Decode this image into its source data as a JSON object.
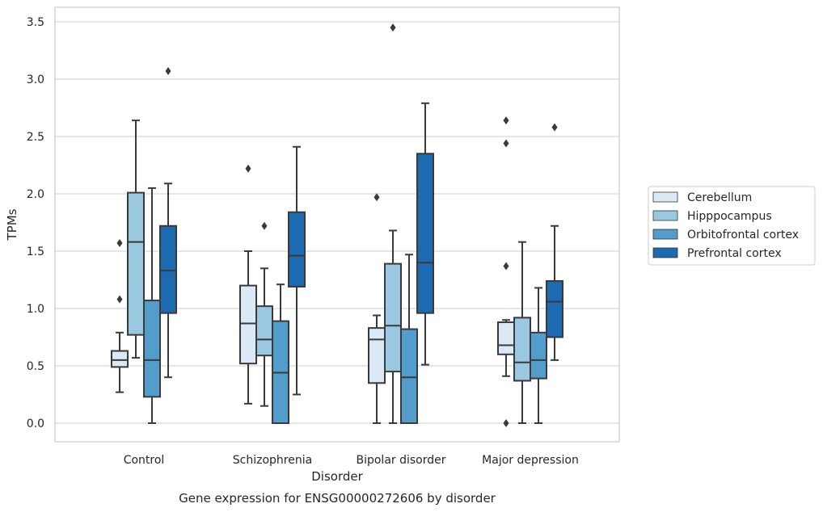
{
  "chart_data": {
    "type": "box",
    "caption": "Gene expression for ENSG00000272606 by disorder",
    "xlabel": "Disorder",
    "ylabel": "TPMs",
    "ylim": [
      -0.17,
      3.65
    ],
    "yticks": [
      "0.0",
      "0.5",
      "1.0",
      "1.5",
      "2.0",
      "2.5",
      "3.0",
      "3.5"
    ],
    "grid": "horizontal",
    "legend_position": "right",
    "categories": [
      "Control",
      "Schizophrenia",
      "Bipolar disorder",
      "Major depression"
    ],
    "series": [
      {
        "name": "Cerebellum",
        "color": "#dbe9f6",
        "boxes": [
          {
            "whisker_low": 0.27,
            "q1": 0.49,
            "median": 0.55,
            "q3": 0.63,
            "whisker_high": 0.79,
            "outliers": [
              1.08,
              1.57
            ]
          },
          {
            "whisker_low": 0.17,
            "q1": 0.52,
            "median": 0.87,
            "q3": 1.2,
            "whisker_high": 1.5,
            "outliers": [
              2.22
            ]
          },
          {
            "whisker_low": 0.0,
            "q1": 0.35,
            "median": 0.73,
            "q3": 0.83,
            "whisker_high": 0.94,
            "outliers": [
              1.97
            ]
          },
          {
            "whisker_low": 0.41,
            "q1": 0.6,
            "median": 0.68,
            "q3": 0.88,
            "whisker_high": 0.9,
            "outliers": [
              0.0,
              1.37,
              2.44,
              2.64
            ]
          }
        ]
      },
      {
        "name": "Hipppocampus",
        "color": "#9ac8e0",
        "boxes": [
          {
            "whisker_low": 0.57,
            "q1": 0.77,
            "median": 1.58,
            "q3": 2.01,
            "whisker_high": 2.64,
            "outliers": []
          },
          {
            "whisker_low": 0.15,
            "q1": 0.59,
            "median": 0.73,
            "q3": 1.02,
            "whisker_high": 1.35,
            "outliers": [
              1.72
            ]
          },
          {
            "whisker_low": 0.0,
            "q1": 0.45,
            "median": 0.85,
            "q3": 1.39,
            "whisker_high": 1.68,
            "outliers": [
              3.45
            ]
          },
          {
            "whisker_low": 0.0,
            "q1": 0.37,
            "median": 0.53,
            "q3": 0.92,
            "whisker_high": 1.58,
            "outliers": []
          }
        ]
      },
      {
        "name": "Orbitofrontal cortex",
        "color": "#529dcc",
        "boxes": [
          {
            "whisker_low": 0.0,
            "q1": 0.23,
            "median": 0.55,
            "q3": 1.07,
            "whisker_high": 2.05,
            "outliers": []
          },
          {
            "whisker_low": 0.0,
            "q1": 0.0,
            "median": 0.44,
            "q3": 0.89,
            "whisker_high": 1.21,
            "outliers": []
          },
          {
            "whisker_low": 0.0,
            "q1": 0.0,
            "median": 0.4,
            "q3": 0.82,
            "whisker_high": 1.47,
            "outliers": []
          },
          {
            "whisker_low": 0.0,
            "q1": 0.39,
            "median": 0.55,
            "q3": 0.79,
            "whisker_high": 1.18,
            "outliers": []
          }
        ]
      },
      {
        "name": "Prefrontal cortex",
        "color": "#1c6aaf",
        "boxes": [
          {
            "whisker_low": 0.4,
            "q1": 0.96,
            "median": 1.33,
            "q3": 1.72,
            "whisker_high": 2.09,
            "outliers": [
              3.07
            ]
          },
          {
            "whisker_low": 0.25,
            "q1": 1.19,
            "median": 1.46,
            "q3": 1.84,
            "whisker_high": 2.41,
            "outliers": []
          },
          {
            "whisker_low": 0.51,
            "q1": 0.96,
            "median": 1.4,
            "q3": 2.35,
            "whisker_high": 2.79,
            "outliers": []
          },
          {
            "whisker_low": 0.55,
            "q1": 0.75,
            "median": 1.06,
            "q3": 1.24,
            "whisker_high": 1.72,
            "outliers": [
              2.58
            ]
          }
        ]
      }
    ]
  }
}
